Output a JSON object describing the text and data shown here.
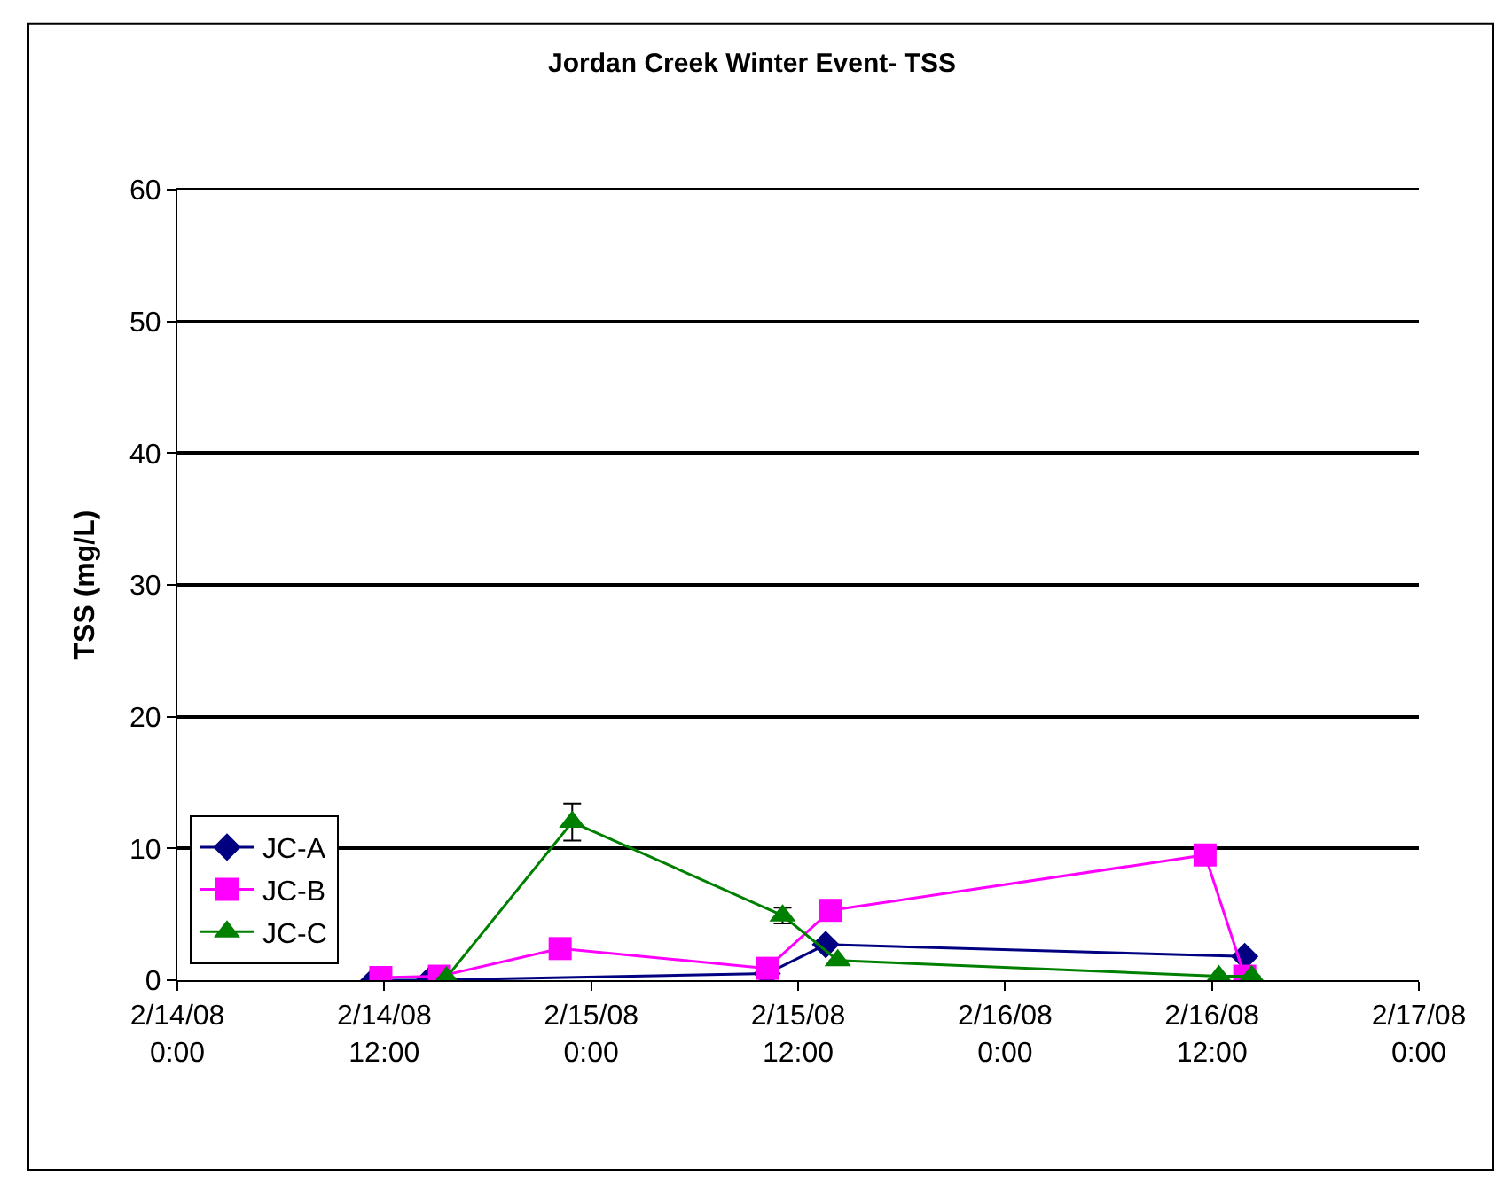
{
  "chart_data": {
    "type": "line",
    "title": "Jordan Creek Winter Event- TSS",
    "ylabel": "TSS (mg/L)",
    "xlim": [
      "--02-14T00:00",
      "--02-17T00:00"
    ],
    "xticks": [
      {
        "value": "--02-14T00:00",
        "label": "2/14/08\n0:00"
      },
      {
        "value": "--02-14T12:00",
        "label": "2/14/08\n12:00"
      },
      {
        "value": "--02-15T00:00",
        "label": "2/15/08\n0:00"
      },
      {
        "value": "--02-15T12:00",
        "label": "2/15/08\n12:00"
      },
      {
        "value": "--02-16T00:00",
        "label": "2/16/08\n0:00"
      },
      {
        "value": "--02-16T12:00",
        "label": "2/16/08\n12:00"
      },
      {
        "value": "--02-17T00:00",
        "label": "2/17/08\n0:00"
      }
    ],
    "ylim": [
      0,
      60
    ],
    "yticks": [
      0,
      10,
      20,
      30,
      40,
      50,
      60
    ],
    "grid": "y",
    "legend": "bottom left",
    "series": [
      {
        "name": "JC-A",
        "color": "#000080",
        "marker": "diamond",
        "x": [
          "--02-14T11:24",
          "--02-14T14:36",
          "--02-15T10:12",
          "--02-15T13:36",
          "--02-16T13:54"
        ],
        "values": [
          0,
          0,
          0.5,
          2.7,
          1.8
        ]
      },
      {
        "name": "JC-B",
        "color": "#ff00ff",
        "marker": "square",
        "x": [
          "--02-14T11:48",
          "--02-14T15:12",
          "--02-14T22:12",
          "--02-15T10:12",
          "--02-15T13:54",
          "--02-16T11:36",
          "--02-16T13:54"
        ],
        "values": [
          0.2,
          0.3,
          2.4,
          0.9,
          5.3,
          9.5,
          0.3
        ]
      },
      {
        "name": "JC-C",
        "color": "#008000",
        "marker": "triangle",
        "x": [
          "--02-14T15:36",
          "--02-14T22:54",
          "--02-15T11:06",
          "--02-15T14:18",
          "--02-16T12:24",
          "--02-16T14:18"
        ],
        "values": [
          0.2,
          12,
          4.9,
          1.5,
          0.3,
          0.3
        ],
        "errors": [
          null,
          1.4,
          0.6,
          null,
          null,
          null
        ]
      }
    ]
  }
}
